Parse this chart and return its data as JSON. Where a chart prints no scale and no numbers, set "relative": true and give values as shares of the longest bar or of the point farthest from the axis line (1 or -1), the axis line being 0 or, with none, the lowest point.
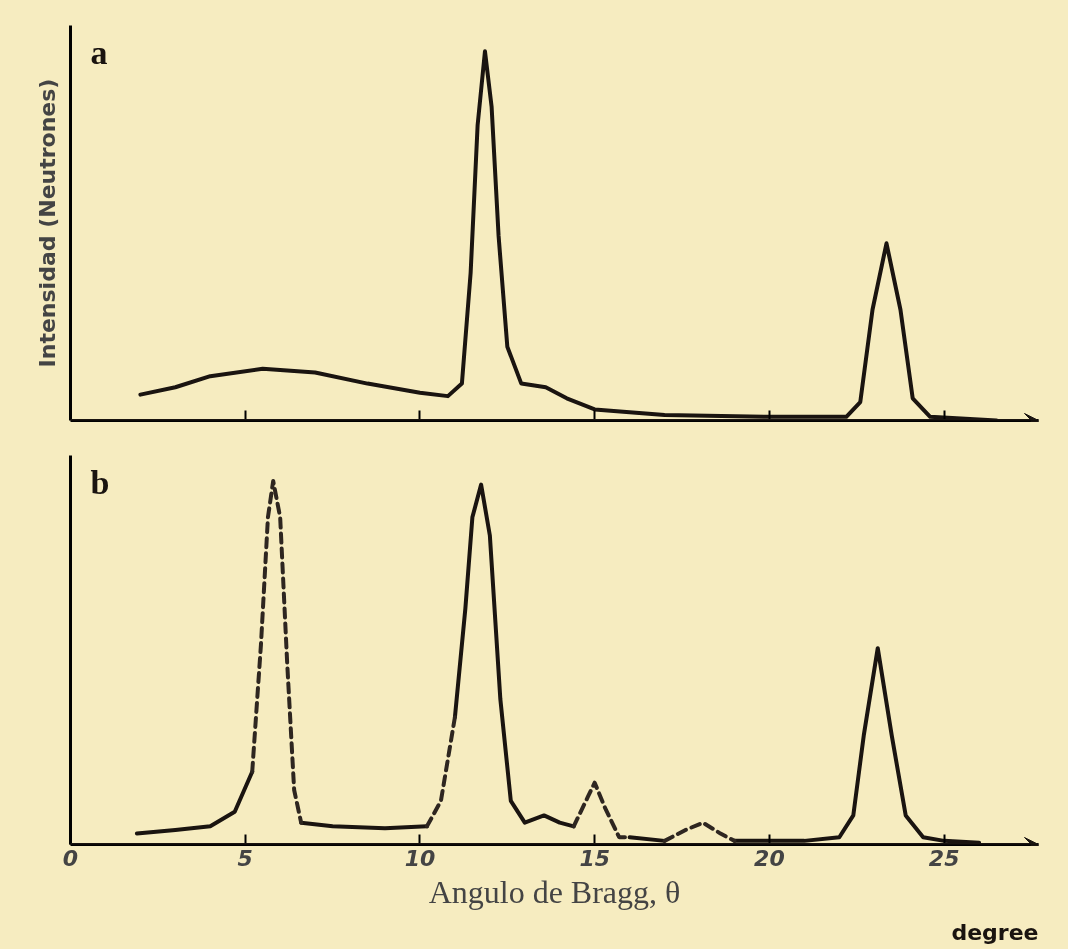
{
  "chart_data": [
    {
      "type": "line",
      "relative": true,
      "ylabel": "Intensidad (Neutrones)",
      "annotations": [
        "a"
      ],
      "tick_labels": false,
      "xlim": [
        0,
        27.7
      ],
      "xticks": [
        {
          "value": 5,
          "label": null
        },
        {
          "value": 10,
          "label": null
        },
        {
          "value": 15,
          "label": null
        },
        {
          "value": 20,
          "label": null
        },
        {
          "value": 25,
          "label": null
        }
      ],
      "grid": false,
      "marker": "none",
      "series": [
        {
          "color": "#1a1410",
          "line_style": "solid",
          "x": [
            2.0,
            3,
            4,
            5.5,
            7,
            8.5,
            10,
            10.8,
            11.2,
            11.45,
            11.65,
            11.86,
            12.05,
            12.25,
            12.5,
            12.9,
            13.6,
            14.2,
            15,
            17,
            20,
            22.2,
            22.6,
            22.95,
            23.35,
            23.75,
            24.1,
            24.6,
            26.5
          ],
          "values": [
            0.07,
            0.09,
            0.12,
            0.14,
            0.13,
            0.1,
            0.075,
            0.066,
            0.1,
            0.4,
            0.8,
            1.0,
            0.85,
            0.5,
            0.2,
            0.1,
            0.09,
            0.06,
            0.03,
            0.015,
            0.01,
            0.01,
            0.05,
            0.3,
            0.48,
            0.3,
            0.06,
            0.01,
            0.0
          ]
        }
      ]
    },
    {
      "type": "line",
      "relative": true,
      "xlabel": "Angulo de Bragg, θ",
      "annotations": [
        "b",
        "degree"
      ],
      "tick_labels": "x",
      "xlim": [
        0,
        27.7
      ],
      "xticks": [
        0,
        5,
        10,
        15,
        20,
        25
      ],
      "grid": false,
      "marker": "none",
      "series": [
        {
          "color": "#1a1410",
          "line_style": "solid",
          "x": [
            1.9,
            3,
            4,
            4.7,
            5.2,
            5.8,
            6.6,
            7.5,
            9,
            10.2,
            10.6,
            11.0,
            11.3,
            11.5,
            11.75,
            12.0,
            12.3,
            12.6,
            13.0,
            13.55,
            14.0,
            14.4,
            15,
            16.0,
            17.0,
            18,
            19.0,
            20,
            21,
            22,
            22.4,
            22.7,
            23.1,
            23.5,
            23.9,
            24.4,
            25,
            26
          ],
          "values": [
            0.03,
            0.04,
            0.05,
            0.09,
            0.2,
            null,
            0.06,
            0.05,
            0.045,
            0.05,
            null,
            0.35,
            0.65,
            0.9,
            0.99,
            0.85,
            0.4,
            0.12,
            0.06,
            0.08,
            0.06,
            0.05,
            null,
            0.02,
            0.01,
            null,
            0.01,
            0.01,
            0.01,
            0.02,
            0.08,
            0.3,
            0.54,
            0.3,
            0.08,
            0.02,
            0.01,
            0.005
          ]
        },
        {
          "color": "#2e2620",
          "line_style": "dashed",
          "x": [
            5.2,
            5.45,
            5.65,
            5.8,
            6.0,
            6.2,
            6.4,
            6.6,
            8,
            10.2,
            10.6,
            11.0,
            13,
            14.4,
            14.8,
            15.0,
            15.3,
            15.7,
            16.0,
            16.5,
            17.0,
            17.6,
            18.1,
            18.6,
            19.0
          ],
          "values": [
            0.2,
            0.55,
            0.9,
            1.0,
            0.9,
            0.5,
            0.15,
            0.06,
            null,
            0.05,
            0.12,
            0.35,
            null,
            0.05,
            0.13,
            0.17,
            0.1,
            0.02,
            0.02,
            null,
            0.01,
            0.04,
            0.06,
            0.03,
            0.01
          ]
        }
      ]
    }
  ]
}
